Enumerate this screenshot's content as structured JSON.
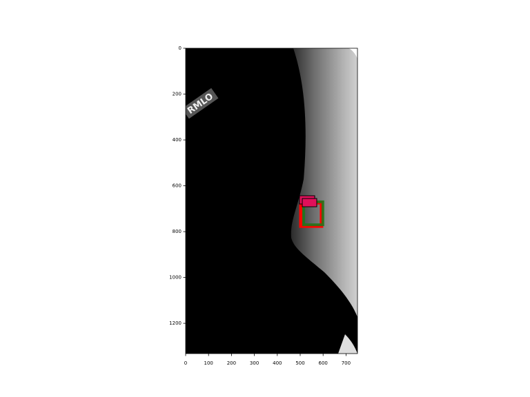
{
  "chart_data": {
    "type": "image",
    "image_label": "RMLO",
    "xlim": [
      0,
      750
    ],
    "ylim": [
      1332,
      0
    ],
    "xticks": [
      0,
      100,
      200,
      300,
      400,
      500,
      600,
      700
    ],
    "yticks": [
      0,
      200,
      400,
      600,
      800,
      1000,
      1200
    ],
    "boxes": [
      {
        "color": "#ff0000",
        "x": [
          503,
          593
        ],
        "y": [
          674,
          776
        ]
      },
      {
        "color": "#1a7a1a",
        "x": [
          515,
          599
        ],
        "y": [
          670,
          770
        ]
      }
    ]
  }
}
